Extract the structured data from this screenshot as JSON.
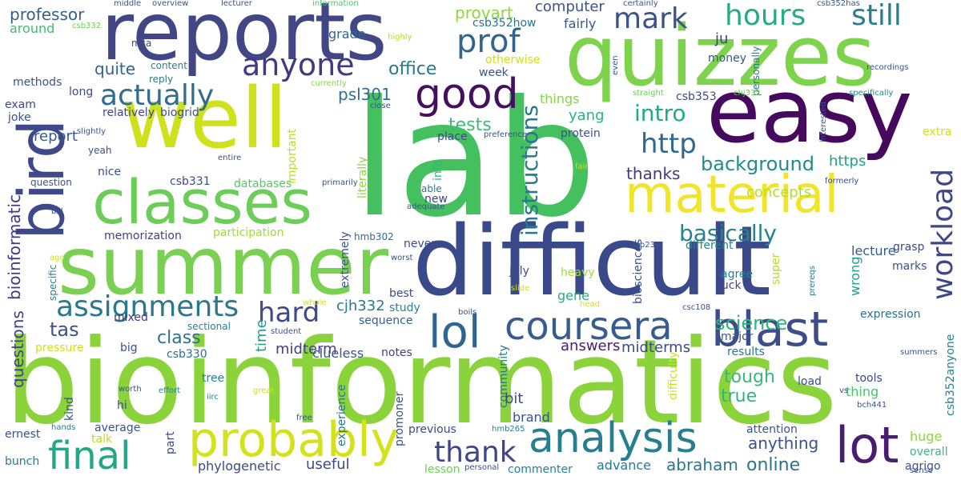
{
  "words": [
    {
      "text": "bioinformatics",
      "color": "#8ad33a"
    },
    {
      "text": "lab",
      "color": "#44c05f"
    },
    {
      "text": "difficult",
      "color": "#39498a"
    },
    {
      "text": "summer",
      "color": "#7ad151"
    },
    {
      "text": "quizzes",
      "color": "#7ed34c"
    },
    {
      "text": "reports",
      "color": "#424685"
    },
    {
      "text": "easy",
      "color": "#45095d"
    },
    {
      "text": "well",
      "color": "#cfe11c"
    },
    {
      "text": "bird",
      "color": "#3f4889"
    },
    {
      "text": "classes",
      "color": "#6ccd58"
    },
    {
      "text": "material",
      "color": "#f0e52a"
    },
    {
      "text": "probably",
      "color": "#d4e21b"
    },
    {
      "text": "analysis",
      "color": "#277e8e"
    },
    {
      "text": "blast",
      "color": "#3d4d8a"
    },
    {
      "text": "lot",
      "color": "#481d6f"
    },
    {
      "text": "coursera",
      "color": "#375c8d"
    },
    {
      "text": "final",
      "color": "#22a884"
    },
    {
      "text": "lol",
      "color": "#32658e"
    },
    {
      "text": "good",
      "color": "#440f5e"
    },
    {
      "text": "anyone",
      "color": "#453882"
    },
    {
      "text": "assignments",
      "color": "#2a788e"
    },
    {
      "text": "actually",
      "color": "#2e6d8e"
    },
    {
      "text": "prof",
      "color": "#32658e"
    },
    {
      "text": "hours",
      "color": "#25ac82"
    },
    {
      "text": "still",
      "color": "#277f8e"
    },
    {
      "text": "mark",
      "color": "#3a538b"
    },
    {
      "text": "hard",
      "color": "#3f4889"
    },
    {
      "text": "thank",
      "color": "#404588"
    },
    {
      "text": "workload",
      "color": "#3f4788"
    },
    {
      "text": "http",
      "color": "#31688e"
    },
    {
      "text": "intro",
      "color": "#24aa83"
    },
    {
      "text": "instructions",
      "color": "#2a788e"
    },
    {
      "text": "basically",
      "color": "#26828e"
    },
    {
      "text": "background",
      "color": "#228c8d"
    },
    {
      "text": "science",
      "color": "#2fb47c"
    },
    {
      "text": "tests",
      "color": "#3ebc73"
    },
    {
      "text": "tas",
      "color": "#3b518b"
    },
    {
      "text": "class",
      "color": "#2d718e"
    },
    {
      "text": "midterm",
      "color": "#424186"
    },
    {
      "text": "questions",
      "color": "#424186"
    },
    {
      "text": "bioinformatic",
      "color": "#453882"
    },
    {
      "text": "report",
      "color": "#38588c"
    },
    {
      "text": "office",
      "color": "#2a788e"
    },
    {
      "text": "quite",
      "color": "#33638d"
    },
    {
      "text": "psl301",
      "color": "#2d708e"
    },
    {
      "text": "provart",
      "color": "#8fd744"
    },
    {
      "text": "computer",
      "color": "#3b528b"
    },
    {
      "text": "csb352how",
      "color": "#2c728e"
    },
    {
      "text": "fairly",
      "color": "#38598c"
    },
    {
      "text": "money",
      "color": "#3b528b"
    },
    {
      "text": "ju",
      "color": "#424186"
    },
    {
      "text": "grade",
      "color": "#31668e"
    },
    {
      "text": "professor",
      "color": "#355f8d"
    },
    {
      "text": "around",
      "color": "#3fbc73"
    },
    {
      "text": "thanks",
      "color": "#453882"
    },
    {
      "text": "concepts",
      "color": "#b5de2b"
    },
    {
      "text": "https",
      "color": "#20a386"
    },
    {
      "text": "abraham",
      "color": "#2a788e"
    },
    {
      "text": "online",
      "color": "#2c738e"
    },
    {
      "text": "anything",
      "color": "#3b528b"
    },
    {
      "text": "answers",
      "color": "#481d6f"
    },
    {
      "text": "midterms",
      "color": "#3e4a89"
    },
    {
      "text": "tough",
      "color": "#37b878"
    },
    {
      "text": "true",
      "color": "#2fb47c"
    },
    {
      "text": "brand",
      "color": "#3b528b"
    },
    {
      "text": "yang",
      "color": "#2db27d"
    },
    {
      "text": "useful",
      "color": "#3f4889"
    },
    {
      "text": "phylogenetic",
      "color": "#3f4889"
    },
    {
      "text": "advance",
      "color": "#2a788e"
    },
    {
      "text": "huge",
      "color": "#8ed645"
    },
    {
      "text": "overall",
      "color": "#3aba76"
    },
    {
      "text": "agrigo",
      "color": "#3b528b"
    },
    {
      "text": "expression",
      "color": "#2c728e"
    },
    {
      "text": "lecture",
      "color": "#38598c"
    },
    {
      "text": "wrong",
      "color": "#1f9e89"
    },
    {
      "text": "grasp",
      "color": "#3e4a89"
    },
    {
      "text": "marks",
      "color": "#3b528b"
    },
    {
      "text": "memorization",
      "color": "#424186"
    },
    {
      "text": "participation",
      "color": "#a2da37"
    },
    {
      "text": "hmb302",
      "color": "#2e6d8e"
    },
    {
      "text": "databases",
      "color": "#54c568"
    },
    {
      "text": "csb331",
      "color": "#3f4788"
    },
    {
      "text": "cjh332",
      "color": "#2a788e"
    },
    {
      "text": "mixed",
      "color": "#46337f"
    },
    {
      "text": "big",
      "color": "#3b528b"
    },
    {
      "text": "csb330",
      "color": "#2e6f8e"
    },
    {
      "text": "sectional",
      "color": "#25858e"
    },
    {
      "text": "time",
      "color": "#1f9a8a"
    },
    {
      "text": "clueless",
      "color": "#3b528b"
    },
    {
      "text": "sequence",
      "color": "#355f8d"
    },
    {
      "text": "notes",
      "color": "#424186"
    },
    {
      "text": "community",
      "color": "#2a788e"
    },
    {
      "text": "bit",
      "color": "#3e4a89"
    },
    {
      "text": "gene",
      "color": "#29af7f"
    },
    {
      "text": "heavy",
      "color": "#9fda3a"
    },
    {
      "text": "july",
      "color": "#3e4a89"
    },
    {
      "text": "agree",
      "color": "#26828e"
    },
    {
      "text": "fuck",
      "color": "#404588"
    },
    {
      "text": "super",
      "color": "#b2dd2d"
    },
    {
      "text": "biosciences",
      "color": "#3b528b"
    },
    {
      "text": "major",
      "color": "#3a548c"
    },
    {
      "text": "results",
      "color": "#2a788e"
    },
    {
      "text": "tools",
      "color": "#404588"
    },
    {
      "text": "thing",
      "color": "#4ac16d"
    },
    {
      "text": "load",
      "color": "#3e4a89"
    },
    {
      "text": "kind",
      "color": "#3b528b"
    },
    {
      "text": "tree",
      "color": "#26828e"
    },
    {
      "text": "hi",
      "color": "#3e4a89"
    },
    {
      "text": "average",
      "color": "#3b528b"
    },
    {
      "text": "pressure",
      "color": "#d0e11c"
    },
    {
      "text": "ernest",
      "color": "#3b528b"
    },
    {
      "text": "bunch",
      "color": "#2a788e"
    },
    {
      "text": "talk",
      "color": "#b8de29"
    },
    {
      "text": "part",
      "color": "#3e4a89"
    },
    {
      "text": "experience",
      "color": "#2a788e"
    },
    {
      "text": "promoner",
      "color": "#3b528b"
    },
    {
      "text": "previous",
      "color": "#3e4a89"
    },
    {
      "text": "lesson",
      "color": "#6ece58"
    },
    {
      "text": "commenter",
      "color": "#26828e"
    },
    {
      "text": "attention",
      "color": "#3b528b"
    },
    {
      "text": "best",
      "color": "#3e4a89"
    },
    {
      "text": "study",
      "color": "#26828e"
    },
    {
      "text": "extremely",
      "color": "#3b528b"
    },
    {
      "text": "never",
      "color": "#3e4a89"
    },
    {
      "text": "different",
      "color": "#26828e"
    },
    {
      "text": "place",
      "color": "#3e4a89"
    },
    {
      "text": "protein",
      "color": "#3b528b"
    },
    {
      "text": "things",
      "color": "#86d549"
    },
    {
      "text": "week",
      "color": "#3b528b"
    },
    {
      "text": "csb353",
      "color": "#3e4a89"
    },
    {
      "text": "relatively",
      "color": "#404588"
    },
    {
      "text": "biogrid",
      "color": "#3b528b"
    },
    {
      "text": "exam",
      "color": "#3e4a89"
    },
    {
      "text": "joke",
      "color": "#3b528b"
    },
    {
      "text": "methods",
      "color": "#3b528b"
    },
    {
      "text": "long",
      "color": "#3e4a89"
    },
    {
      "text": "content",
      "color": "#26828e"
    },
    {
      "text": "reply",
      "color": "#2a788e"
    },
    {
      "text": "msa",
      "color": "#404588"
    },
    {
      "text": "nice",
      "color": "#3e4a89"
    },
    {
      "text": "yeah",
      "color": "#3b528b"
    },
    {
      "text": "question",
      "color": "#3b528b"
    },
    {
      "text": "specific",
      "color": "#26828e"
    },
    {
      "text": "important",
      "color": "#bddf26"
    },
    {
      "text": "literally",
      "color": "#8ed645"
    },
    {
      "text": "interesting",
      "color": "#4ac16d"
    },
    {
      "text": "info",
      "color": "#2fb47c"
    },
    {
      "text": "able",
      "color": "#2a788e"
    },
    {
      "text": "new",
      "color": "#404588"
    },
    {
      "text": "middle",
      "color": "#3b528b"
    },
    {
      "text": "overview",
      "color": "#3b528b"
    },
    {
      "text": "lecturer",
      "color": "#3b528b"
    },
    {
      "text": "information",
      "color": "#54c568"
    },
    {
      "text": "certainly",
      "color": "#3b528b"
    },
    {
      "text": "csb352has",
      "color": "#3b528b"
    },
    {
      "text": "csb332",
      "color": "#6ece58"
    },
    {
      "text": "highly",
      "color": "#b5de2b"
    },
    {
      "text": "otherwise",
      "color": "#d0e11c"
    },
    {
      "text": "even",
      "color": "#3b528b"
    },
    {
      "text": "personally",
      "color": "#2a788e"
    },
    {
      "text": "chj332",
      "color": "#6ece58"
    },
    {
      "text": "recordings",
      "color": "#3b528b"
    },
    {
      "text": "specifically",
      "color": "#26828e"
    },
    {
      "text": "straight",
      "color": "#6ece58"
    },
    {
      "text": "currently",
      "color": "#8ed645"
    },
    {
      "text": "close",
      "color": "#3b528b"
    },
    {
      "text": "preference",
      "color": "#3b528b"
    },
    {
      "text": "slightly",
      "color": "#3b528b"
    },
    {
      "text": "entire",
      "color": "#3b528b"
    },
    {
      "text": "primarily",
      "color": "#3b528b"
    },
    {
      "text": "fair",
      "color": "#d0e11c"
    },
    {
      "text": "interested",
      "color": "#3b528b"
    },
    {
      "text": "extra",
      "color": "#d0e11c"
    },
    {
      "text": "formerly",
      "color": "#3b528b"
    },
    {
      "text": "bill",
      "color": "#3b528b"
    },
    {
      "text": "adequate",
      "color": "#3b528b"
    },
    {
      "text": "ago",
      "color": "#d0e11c"
    },
    {
      "text": "worst",
      "color": "#3b528b"
    },
    {
      "text": "slide",
      "color": "#d0e11c"
    },
    {
      "text": "bio230",
      "color": "#3b528b"
    },
    {
      "text": "prereqs",
      "color": "#2a788e"
    },
    {
      "text": "whole",
      "color": "#d0e11c"
    },
    {
      "text": "boils",
      "color": "#3b528b"
    },
    {
      "text": "head",
      "color": "#d0e11c"
    },
    {
      "text": "csc108",
      "color": "#3b528b"
    },
    {
      "text": "student",
      "color": "#3b528b"
    },
    {
      "text": "summers",
      "color": "#3b528b"
    },
    {
      "text": "effort",
      "color": "#26828e"
    },
    {
      "text": "worth",
      "color": "#3b528b"
    },
    {
      "text": "iirc",
      "color": "#26828e"
    },
    {
      "text": "great",
      "color": "#d0e11c"
    },
    {
      "text": "free",
      "color": "#3b528b"
    },
    {
      "text": "hands",
      "color": "#26828e"
    },
    {
      "text": "hmb265",
      "color": "#26828e"
    },
    {
      "text": "personal",
      "color": "#3b528b"
    },
    {
      "text": "bch441",
      "color": "#3b528b"
    },
    {
      "text": "vs",
      "color": "#3b528b"
    },
    {
      "text": "csb352anyone",
      "color": "#26828e"
    },
    {
      "text": "sense",
      "color": "#3b528b"
    },
    {
      "text": "difficulty",
      "color": "#d0e11c"
    }
  ]
}
